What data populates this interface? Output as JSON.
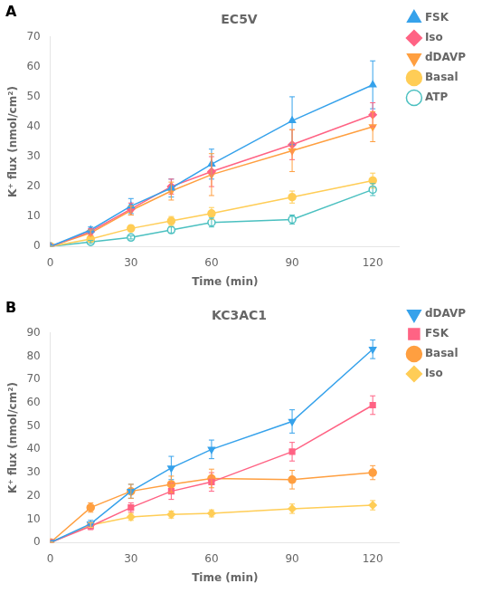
{
  "chart_data": [
    {
      "type": "line",
      "title": "EC5V",
      "annotations": [
        "A"
      ],
      "x_label": "Time (min)",
      "y_label": "K⁺ flux (nmol/cm²)",
      "xlim": [
        0,
        130
      ],
      "ylim": [
        0,
        70
      ],
      "xticks": [
        0,
        30,
        60,
        90,
        120
      ],
      "yticks": [
        0,
        10,
        20,
        30,
        40,
        50,
        60,
        70
      ],
      "grid": false,
      "legend": "right",
      "series": [
        {
          "name": "FSK",
          "marker": "triangle",
          "x": [
            0,
            15,
            30,
            45,
            60,
            90,
            120
          ],
          "values": [
            0,
            5.5,
            13.5,
            19.5,
            27.5,
            42.0,
            54.0
          ],
          "errors": [
            0,
            1.0,
            2.5,
            3.0,
            5.0,
            8.0,
            8.0
          ]
        },
        {
          "name": "Iso",
          "marker": "diamond",
          "x": [
            0,
            15,
            30,
            45,
            60,
            90,
            120
          ],
          "values": [
            0,
            5.0,
            12.5,
            20.0,
            25.0,
            34.0,
            44.0
          ],
          "errors": [
            0,
            1.0,
            2.0,
            2.5,
            5.0,
            5.0,
            4.0
          ]
        },
        {
          "name": "dDAVP",
          "marker": "triangle-down",
          "x": [
            0,
            15,
            30,
            45,
            60,
            90,
            120
          ],
          "values": [
            0,
            4.5,
            12.0,
            18.5,
            24.0,
            32.0,
            40.0
          ],
          "errors": [
            0,
            1.0,
            1.5,
            3.0,
            7.0,
            7.0,
            5.0
          ]
        },
        {
          "name": "Basal",
          "marker": "circle",
          "x": [
            0,
            15,
            30,
            45,
            60,
            90,
            120
          ],
          "values": [
            0,
            2.5,
            6.0,
            8.5,
            11.0,
            16.5,
            22.0
          ],
          "errors": [
            0,
            0.5,
            1.0,
            1.5,
            2.0,
            2.0,
            2.5
          ]
        },
        {
          "name": "ATP",
          "marker": "open-circle",
          "x": [
            0,
            15,
            30,
            45,
            60,
            90,
            120
          ],
          "values": [
            0,
            1.5,
            3.0,
            5.5,
            8.0,
            9.0,
            19.0
          ],
          "errors": [
            0,
            0.5,
            0.5,
            1.0,
            1.5,
            1.5,
            2.0
          ]
        }
      ]
    },
    {
      "type": "line",
      "title": "KC3AC1",
      "annotations": [
        "B"
      ],
      "x_label": "Time (min)",
      "y_label": "K⁺ flux (nmol/cm²)",
      "xlim": [
        0,
        130
      ],
      "ylim": [
        0,
        90
      ],
      "xticks": [
        0,
        30,
        60,
        90,
        120
      ],
      "yticks": [
        0,
        10,
        20,
        30,
        40,
        50,
        60,
        70,
        80,
        90
      ],
      "grid": false,
      "legend": "right",
      "series": [
        {
          "name": "dDAVP",
          "marker": "triangle-down",
          "x": [
            0,
            15,
            30,
            45,
            60,
            90,
            120
          ],
          "values": [
            0,
            8.0,
            22.0,
            32.0,
            40.0,
            52.0,
            83.0
          ],
          "errors": [
            0,
            1.5,
            3.0,
            5.0,
            4.0,
            5.0,
            4.0
          ]
        },
        {
          "name": "FSK",
          "marker": "square",
          "x": [
            0,
            15,
            30,
            45,
            60,
            90,
            120
          ],
          "values": [
            0,
            7.0,
            15.0,
            22.0,
            26.0,
            39.0,
            59.0
          ],
          "errors": [
            0,
            1.5,
            2.0,
            3.5,
            4.0,
            4.0,
            4.0
          ]
        },
        {
          "name": "Basal",
          "marker": "circle",
          "x": [
            0,
            15,
            30,
            45,
            60,
            90,
            120
          ],
          "values": [
            0,
            15.0,
            22.0,
            25.0,
            27.5,
            27.0,
            30.0
          ],
          "errors": [
            0,
            2.0,
            3.0,
            3.5,
            4.0,
            4.0,
            3.0
          ]
        },
        {
          "name": "Iso",
          "marker": "diamond",
          "x": [
            0,
            15,
            30,
            45,
            60,
            90,
            120
          ],
          "values": [
            0,
            7.5,
            11.0,
            12.0,
            12.5,
            14.5,
            16.0
          ],
          "errors": [
            0,
            1.0,
            1.5,
            1.5,
            1.5,
            2.0,
            2.0
          ]
        }
      ]
    }
  ]
}
